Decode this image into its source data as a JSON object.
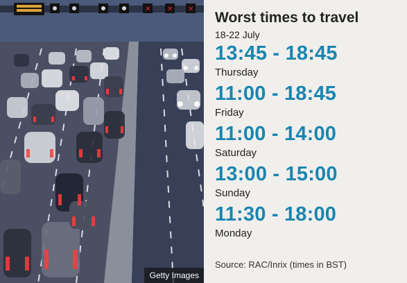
{
  "photo": {
    "credit": "Getty Images"
  },
  "panel": {
    "title": "Worst times to travel",
    "subtitle": "18-22 July",
    "entries": [
      {
        "time": "13:45 - 18:45",
        "day": "Thursday"
      },
      {
        "time": "11:00 - 18:45",
        "day": "Friday"
      },
      {
        "time": "11:00 - 14:00",
        "day": "Saturday"
      },
      {
        "time": "13:00 - 15:00",
        "day": "Sunday"
      },
      {
        "time": "11:30 - 18:00",
        "day": "Monday"
      }
    ],
    "source": "Source: RAC/Inrix (times in BST)"
  },
  "colors": {
    "accent": "#1a85b0",
    "background": "#f1efec"
  }
}
